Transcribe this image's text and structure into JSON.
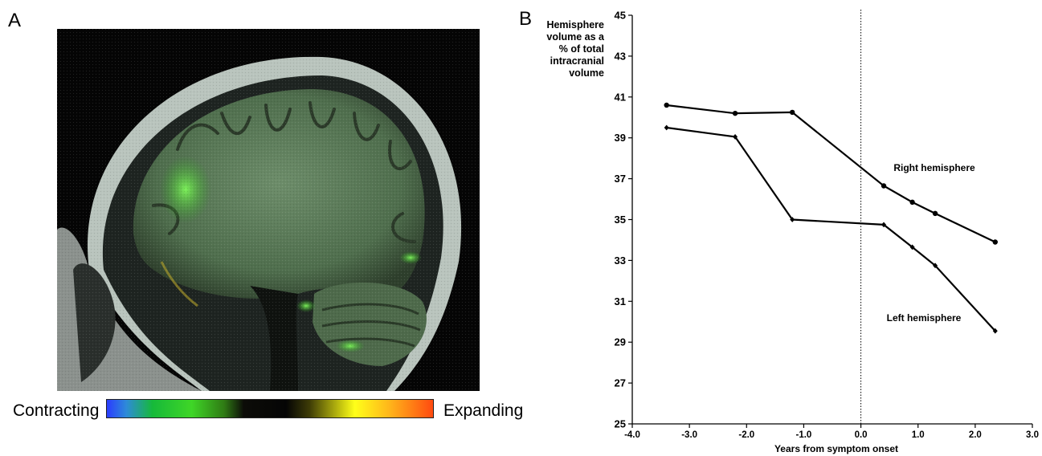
{
  "panels": {
    "a_label": "A",
    "b_label": "B"
  },
  "scale": {
    "left_label": "Contracting",
    "right_label": "Expanding"
  },
  "chart_data": {
    "type": "line",
    "ylabel_lines": [
      "Hemisphere",
      "volume as a",
      "% of total",
      "intracranial",
      "volume"
    ],
    "xlabel": "Years from symptom onset",
    "xlim": [
      -4.0,
      3.0
    ],
    "ylim": [
      25,
      45
    ],
    "x_ticks": [
      "-4.0",
      "-3.0",
      "-2.0",
      "-1.0",
      "0.0",
      "1.0",
      "2.0",
      "3.0"
    ],
    "y_ticks": [
      "25",
      "27",
      "29",
      "31",
      "33",
      "35",
      "37",
      "39",
      "41",
      "43",
      "45"
    ],
    "vertical_reference_x": 0.0,
    "series": [
      {
        "name": "Right hemisphere",
        "marker": "circle",
        "x": [
          -3.4,
          -2.2,
          -1.2,
          0.4,
          0.9,
          1.3,
          2.35
        ],
        "y": [
          40.6,
          40.2,
          40.25,
          36.65,
          35.85,
          35.3,
          33.9
        ]
      },
      {
        "name": "Left hemisphere",
        "marker": "diamond",
        "x": [
          -3.4,
          -2.2,
          -1.2,
          0.4,
          0.9,
          1.3,
          2.35
        ],
        "y": [
          39.5,
          39.05,
          35.0,
          34.75,
          33.65,
          32.75,
          29.55
        ]
      }
    ]
  }
}
